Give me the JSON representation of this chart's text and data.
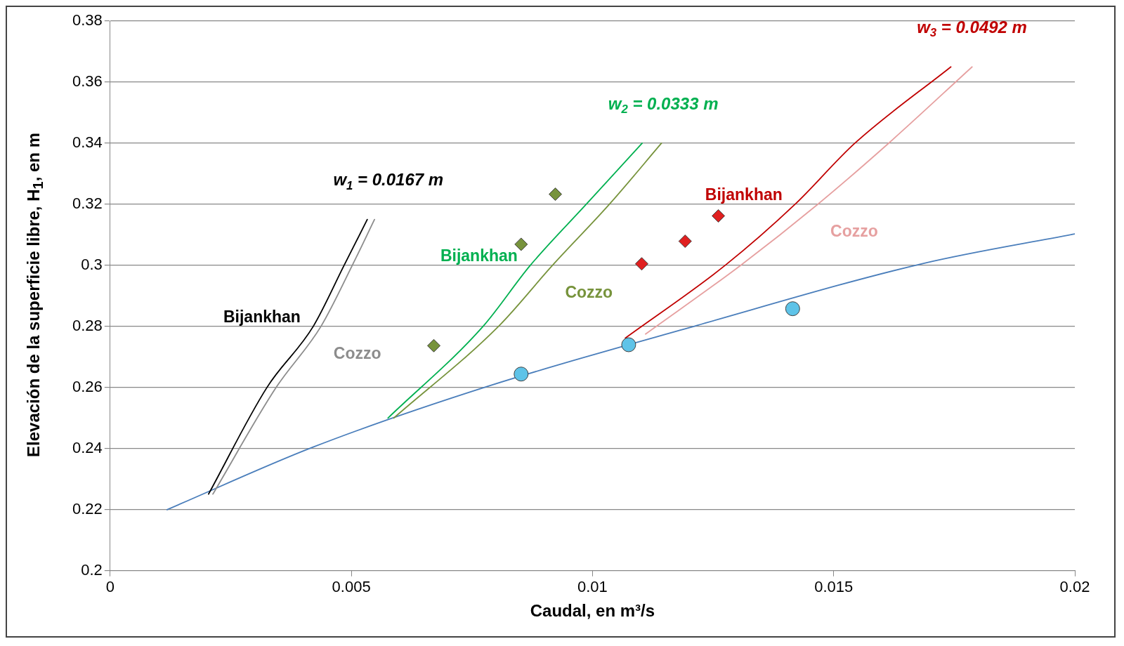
{
  "chart_data": {
    "type": "line",
    "xlabel": "Caudal, en m³/s",
    "ylabel": "Elevación de la superficie libre, H$_{1}$, en m",
    "xlim": [
      0,
      0.02
    ],
    "xticks": [
      0,
      0.005,
      0.01,
      0.015,
      0.02
    ],
    "ylim": [
      0.2,
      0.38
    ],
    "yticks": [
      0.2,
      0.22,
      0.24,
      0.26,
      0.28,
      0.3,
      0.32,
      0.34,
      0.36,
      0.38
    ],
    "grid": "y",
    "legend": false,
    "series": [
      {
        "type": "line",
        "marker": "none",
        "color": "#4a7ebb",
        "x": [
          0.00118,
          0.00421,
          0.00783,
          0.01216,
          0.01688,
          0.02
        ],
        "values": [
          0.22,
          0.2405,
          0.2604,
          0.2803,
          0.3007,
          0.3103
        ]
      },
      {
        "type": "scatter",
        "marker": "circle",
        "color": "#5ec3e8",
        "x": [
          0.00852,
          0.01075,
          0.01415
        ],
        "values": [
          0.2644,
          0.274,
          0.2858
        ]
      },
      {
        "type": "scatter",
        "marker": "diamond",
        "color": "#77933c",
        "x": [
          0.00671,
          0.00852,
          0.00923
        ],
        "values": [
          0.2737,
          0.3069,
          0.3233
        ]
      },
      {
        "type": "scatter",
        "marker": "diamond",
        "color": "#e02020",
        "x": [
          0.01102,
          0.01192,
          0.01261
        ],
        "values": [
          0.3005,
          0.3079,
          0.3162
        ]
      },
      {
        "type": "line",
        "marker": "none",
        "name": "Bijankhan",
        "color": "#000000",
        "x": [
          0.00204,
          0.00325,
          0.00421,
          0.00485,
          0.00533
        ],
        "values": [
          0.2251,
          0.26,
          0.28,
          0.3,
          0.315
        ]
      },
      {
        "type": "line",
        "marker": "none",
        "name": "Cozzo",
        "color": "#8c8c8c",
        "x": [
          0.00213,
          0.00344,
          0.00437,
          0.00502,
          0.00548
        ],
        "values": [
          0.2251,
          0.26,
          0.28,
          0.3,
          0.315
        ]
      },
      {
        "type": "line",
        "marker": "none",
        "name": "Bijankhan",
        "color": "#00b050",
        "x": [
          0.00576,
          0.00773,
          0.00871,
          0.00987,
          0.01103
        ],
        "values": [
          0.25,
          0.28,
          0.3,
          0.32,
          0.34
        ]
      },
      {
        "type": "line",
        "marker": "none",
        "name": "Cozzo",
        "color": "#77933c",
        "x": [
          0.00588,
          0.00805,
          0.00917,
          0.01035,
          0.01143
        ],
        "values": [
          0.25,
          0.28,
          0.3,
          0.32,
          0.34
        ]
      },
      {
        "type": "line",
        "marker": "none",
        "name": "Bijankhan",
        "color": "#c00000",
        "x": [
          0.01068,
          0.01275,
          0.0142,
          0.01544,
          0.01743
        ],
        "values": [
          0.2762,
          0.3,
          0.32,
          0.34,
          0.365
        ]
      },
      {
        "marker": "none",
        "name": "Cozzo",
        "color": "#e6a0a0",
        "x": [
          0.0111,
          0.01307,
          0.01467,
          0.01614,
          0.01787
        ],
        "values": [
          0.2775,
          0.3,
          0.32,
          0.34,
          0.365
        ]
      }
    ],
    "annotations": [
      {
        "text": "w$_{1}$ = 0.0167 m",
        "x": 0.00533,
        "y": 0.315
      },
      {
        "text": "w$_{2}$ = 0.0333 m",
        "x": 0.01103,
        "y": 0.34
      },
      {
        "text": "w$_{3}$ = 0.0492 m",
        "x": 0.01743,
        "y": 0.365
      }
    ]
  }
}
